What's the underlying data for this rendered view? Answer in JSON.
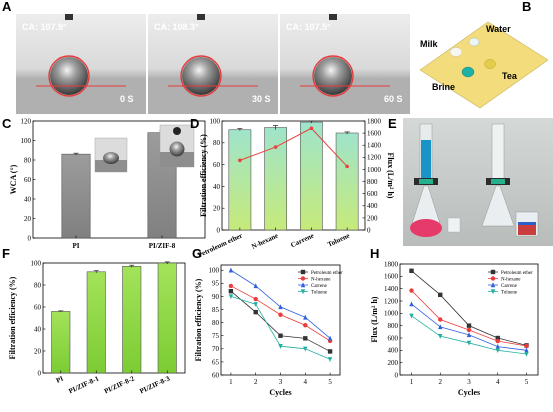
{
  "panels": {
    "a": "A",
    "b": "B",
    "c": "C",
    "d": "D",
    "e": "E",
    "f": "F",
    "g": "G",
    "h": "H"
  },
  "photo_a": {
    "frames": [
      {
        "ca": "CA: 107.9°",
        "time": "0 S"
      },
      {
        "ca": "CA: 108.3°",
        "time": "30 S"
      },
      {
        "ca": "CA: 107.5°",
        "time": "60 S"
      }
    ]
  },
  "photo_b": {
    "milk": "Milk",
    "water": "Water",
    "brine": "Brine",
    "tea": "Tea"
  },
  "colors": {
    "gray_bar": "#8a8a8a",
    "green_bar": "#8fd84a",
    "teal_bar": "#a4e6c8",
    "red_line": "#e8413b",
    "black": "#333333",
    "red": "#ee3b3b",
    "blue": "#3060e0",
    "cyan": "#22b0a0"
  },
  "chart_data": [
    {
      "id": "C",
      "type": "bar",
      "categories": [
        "PI",
        "PI/ZIF-8"
      ],
      "values": [
        86,
        108
      ],
      "errors": [
        1,
        2
      ],
      "ylabel": "WCA (°)",
      "ylim": [
        0,
        120
      ],
      "yticks": [
        0,
        20,
        40,
        60,
        80,
        100,
        120
      ]
    },
    {
      "id": "D",
      "type": "bar",
      "categories": [
        "Petroleum ether",
        "N-hexane",
        "Carrene",
        "Toluene"
      ],
      "values": [
        92,
        94,
        99,
        89
      ],
      "errors": [
        1,
        2,
        1,
        1
      ],
      "ylabel": "Filtration efficiency (%)",
      "ylim": [
        0,
        100
      ],
      "yticks": [
        0,
        20,
        40,
        60,
        80,
        100
      ],
      "y2label": "Flux (L/m² h)",
      "y2lim": [
        0,
        1800
      ],
      "y2ticks": [
        0,
        200,
        400,
        600,
        800,
        1000,
        1200,
        1400,
        1600,
        1800
      ],
      "flux": [
        1150,
        1370,
        1680,
        1050
      ]
    },
    {
      "id": "F",
      "type": "bar",
      "categories": [
        "PI",
        "PI/ZIF-8-1",
        "PI/ZIF-8-2",
        "PI/ZIF-8-3"
      ],
      "values": [
        56,
        92,
        97,
        100
      ],
      "errors": [
        0.5,
        1,
        1,
        1
      ],
      "ylabel": "Filtration efficiency (%)",
      "ylim": [
        0,
        100
      ],
      "yticks": [
        0,
        20,
        40,
        60,
        80,
        100
      ]
    },
    {
      "id": "G",
      "type": "line",
      "x": [
        1,
        2,
        3,
        4,
        5
      ],
      "xlabel": "Cycles",
      "ylabel": "Filtration efficiency (%)",
      "ylim": [
        60,
        102
      ],
      "yticks": [
        60,
        65,
        70,
        75,
        80,
        85,
        90,
        95,
        100
      ],
      "legend": "top-right",
      "series": [
        {
          "name": "Petroleum ether",
          "values": [
            92,
            84,
            75,
            74,
            69
          ],
          "color": "#333333",
          "marker": "square"
        },
        {
          "name": "N-hexane",
          "values": [
            94,
            89,
            83,
            79,
            73
          ],
          "color": "#ee3b3b",
          "marker": "circle"
        },
        {
          "name": "Carrene",
          "values": [
            100,
            94,
            86,
            82,
            74
          ],
          "color": "#3060e0",
          "marker": "triangle"
        },
        {
          "name": "Toluene",
          "values": [
            90,
            87,
            71,
            70,
            66
          ],
          "color": "#22b0a0",
          "marker": "tri-down"
        }
      ]
    },
    {
      "id": "H",
      "type": "line",
      "x": [
        1,
        2,
        3,
        4,
        5
      ],
      "xlabel": "Cycles",
      "ylabel": "Flux (L/m² h)",
      "ylim": [
        0,
        1800
      ],
      "yticks": [
        0,
        200,
        400,
        600,
        800,
        1000,
        1200,
        1400,
        1600,
        1800
      ],
      "legend": "top-right",
      "series": [
        {
          "name": "Petroleum ether",
          "values": [
            1690,
            1300,
            800,
            600,
            480
          ],
          "color": "#333333",
          "marker": "square"
        },
        {
          "name": "N-hexane",
          "values": [
            1370,
            900,
            730,
            550,
            470
          ],
          "color": "#ee3b3b",
          "marker": "circle"
        },
        {
          "name": "Carrene",
          "values": [
            1150,
            780,
            650,
            460,
            400
          ],
          "color": "#3060e0",
          "marker": "triangle"
        },
        {
          "name": "Toluene",
          "values": [
            960,
            630,
            520,
            400,
            340
          ],
          "color": "#22b0a0",
          "marker": "tri-down"
        }
      ]
    }
  ]
}
